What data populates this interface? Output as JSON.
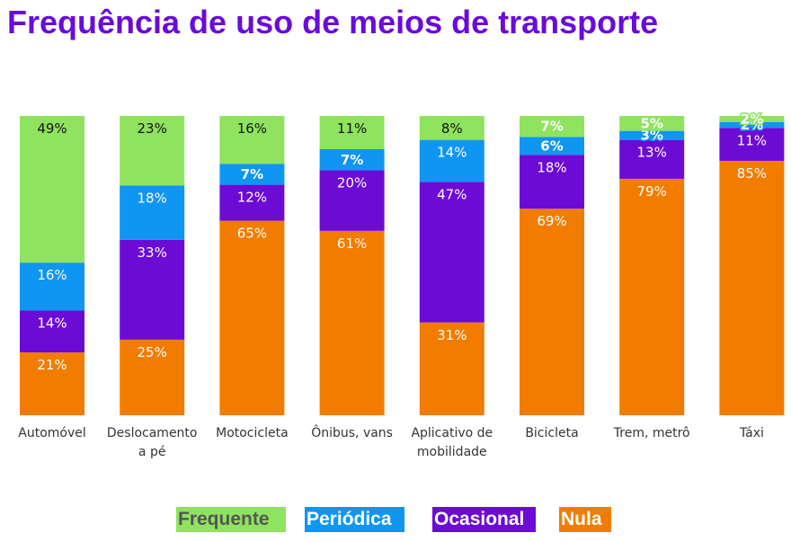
{
  "title": "Frequência de uso de meios de transporte",
  "chart_data": {
    "type": "bar",
    "stacked": true,
    "categories": [
      "Automóvel",
      "Deslocamento a pé",
      "Motocicleta",
      "Ônibus, vans",
      "Aplicativo de mobilidade",
      "Bicicleta",
      "Trem, metrô",
      "Táxi"
    ],
    "category_lines": [
      [
        "Automóvel"
      ],
      [
        "Deslocamento",
        "a pé"
      ],
      [
        "Motocicleta"
      ],
      [
        "Ônibus, vans"
      ],
      [
        "Aplicativo de",
        "mobilidade"
      ],
      [
        "Bicicleta"
      ],
      [
        "Trem, metrô"
      ],
      [
        "Táxi"
      ]
    ],
    "series": [
      {
        "name": "Frequente",
        "color": "#8fe35f",
        "values": [
          49,
          23,
          16,
          11,
          8,
          7,
          5,
          2
        ]
      },
      {
        "name": "Periódica",
        "color": "#0f95f2",
        "values": [
          16,
          18,
          7,
          7,
          14,
          6,
          3,
          2
        ]
      },
      {
        "name": "Ocasional",
        "color": "#6c0ad6",
        "values": [
          14,
          33,
          12,
          20,
          47,
          18,
          13,
          11
        ]
      },
      {
        "name": "Nula",
        "color": "#f27c00",
        "values": [
          21,
          25,
          65,
          61,
          31,
          69,
          79,
          85
        ]
      }
    ],
    "value_suffix": "%",
    "ylim": [
      0,
      100
    ],
    "grid": false,
    "legend_position": "bottom"
  }
}
